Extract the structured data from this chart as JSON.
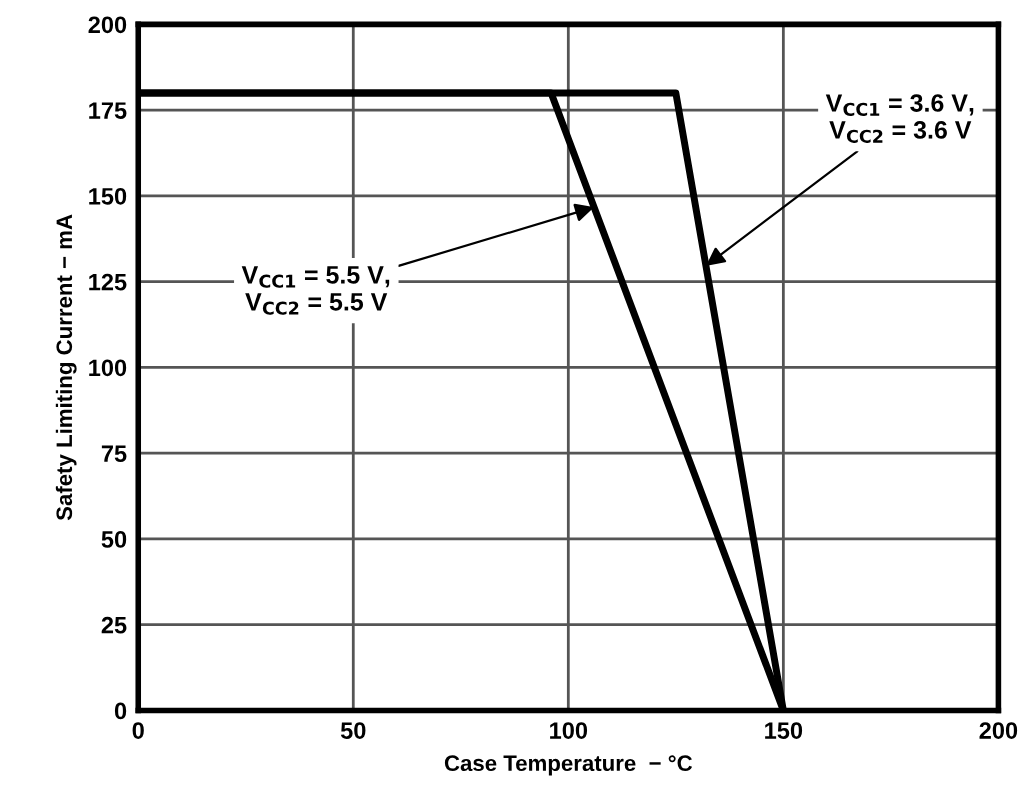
{
  "chart_data": {
    "type": "line",
    "xlabel": "Case Temperature  − °C",
    "ylabel": "Safety Limiting Current − mA",
    "series": [
      {
        "name": "V$_{CC1}$ = 5.5 V,\nV$_{CC2}$ = 5.5 V",
        "color": "#000000",
        "x": [
          0,
          96,
          150
        ],
        "values": [
          180,
          180,
          0
        ]
      },
      {
        "name": "V$_{CC1}$ = 3.6 V,\nV$_{CC2}$ = 3.6 V",
        "color": "#000000",
        "x": [
          0,
          125,
          150
        ],
        "values": [
          180,
          180,
          0
        ]
      }
    ],
    "xlim": [
      0,
      200
    ],
    "xticks": [
      0,
      50,
      100,
      150,
      200
    ],
    "ylim": [
      0,
      200
    ],
    "yticks": [
      0,
      25,
      50,
      75,
      100,
      125,
      150,
      175,
      200
    ],
    "grid": true,
    "line_style": "solid",
    "marker": "none"
  }
}
